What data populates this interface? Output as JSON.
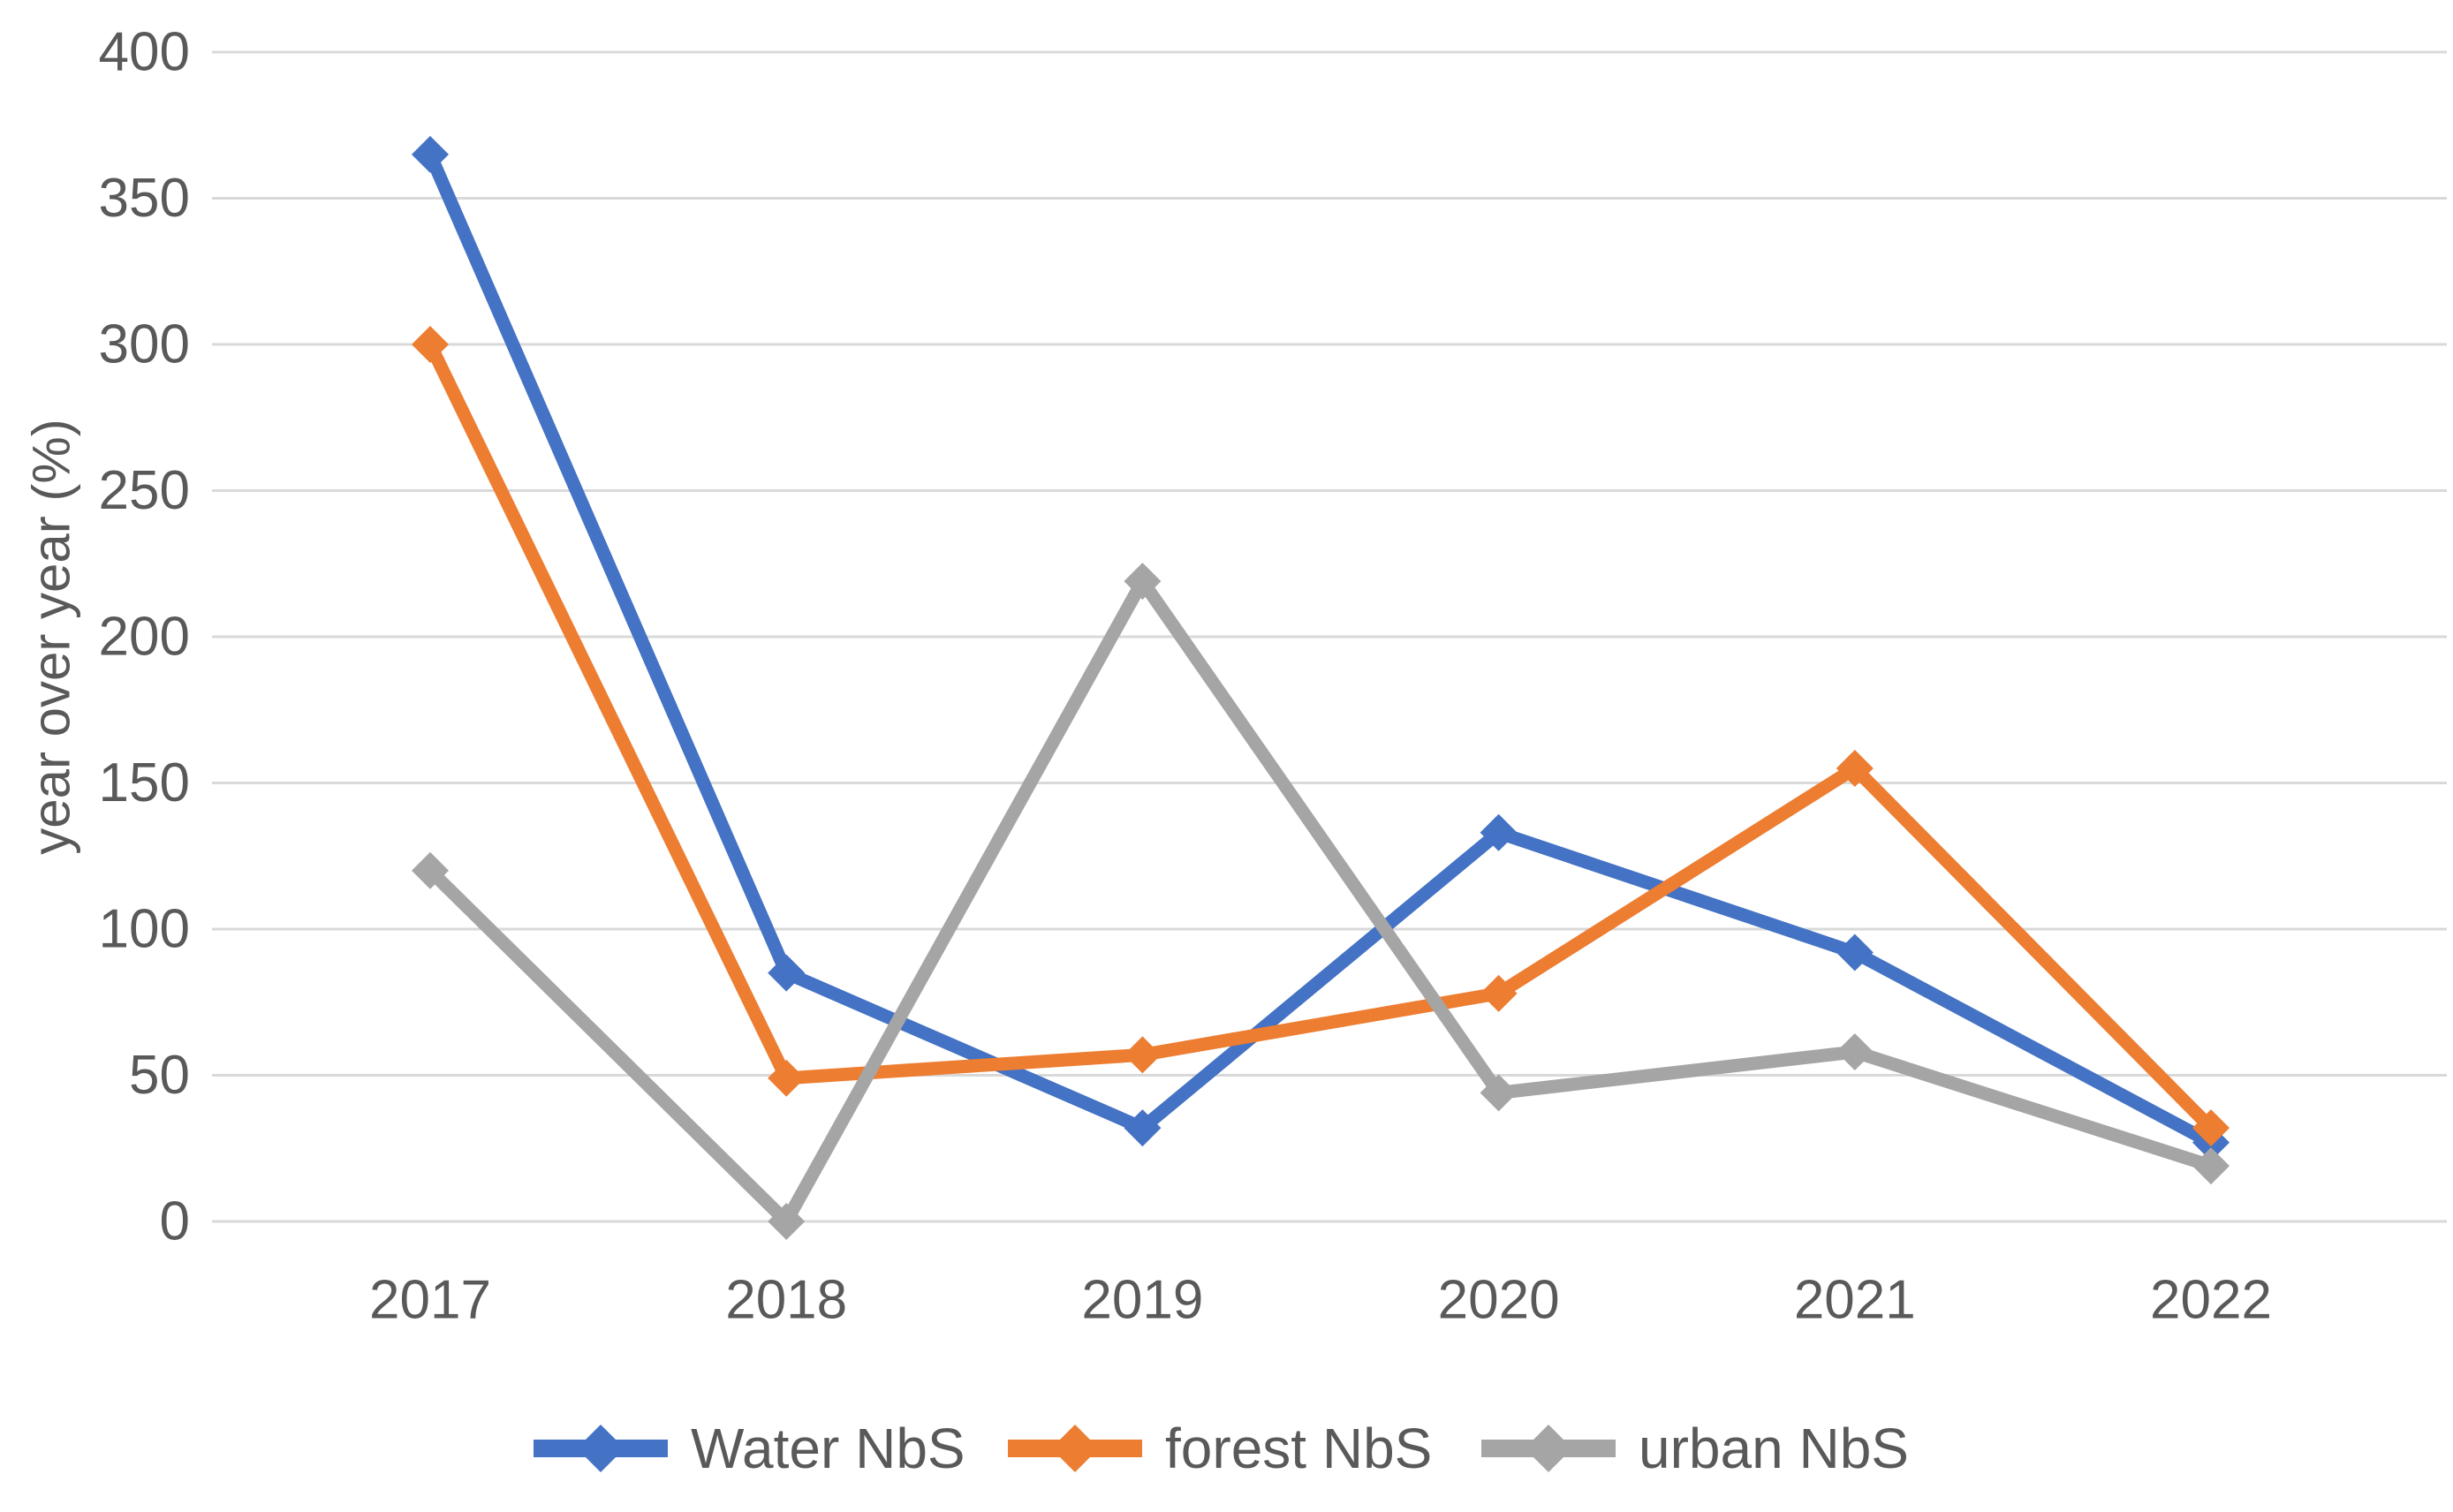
{
  "chart_data": {
    "type": "line",
    "title": "",
    "xlabel": "",
    "ylabel": "year over year (%)",
    "categories": [
      "2017",
      "2018",
      "2019",
      "2020",
      "2021",
      "2022"
    ],
    "series": [
      {
        "name": "Water NbS",
        "color": "#4472C4",
        "values": [
          365,
          85,
          32,
          133,
          92,
          27
        ]
      },
      {
        "name": "forest NbS",
        "color": "#ED7D31",
        "values": [
          300,
          49,
          57,
          78,
          155,
          32
        ]
      },
      {
        "name": "urban NbS",
        "color": "#A5A5A5",
        "values": [
          120,
          0,
          219,
          44,
          58,
          19
        ]
      }
    ],
    "ylim": [
      0,
      400
    ],
    "yticks": [
      0,
      50,
      100,
      150,
      200,
      250,
      300,
      350,
      400
    ],
    "grid": "horizontal-only",
    "gridline_color": "#D9D9D9",
    "text_color": "#595959",
    "background_color": "#FFFFFF",
    "marker": "diamond",
    "legend_position": "bottom"
  }
}
